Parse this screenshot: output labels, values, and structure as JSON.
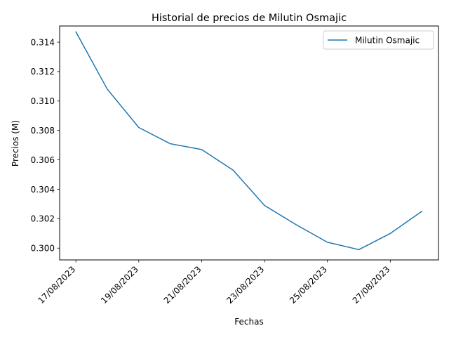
{
  "chart_data": {
    "type": "line",
    "title": "Historial de precios de Milutin Osmajic",
    "xlabel": "Fechas",
    "ylabel": "Precios (M)",
    "x": [
      "17/08/2023",
      "18/08/2023",
      "19/08/2023",
      "20/08/2023",
      "21/08/2023",
      "22/08/2023",
      "23/08/2023",
      "24/08/2023",
      "25/08/2023",
      "26/08/2023",
      "27/08/2023",
      "28/08/2023"
    ],
    "x_tick_labels": [
      "17/08/2023",
      "19/08/2023",
      "21/08/2023",
      "23/08/2023",
      "25/08/2023",
      "27/08/2023"
    ],
    "ylim": [
      0.2992,
      0.3151
    ],
    "y_ticks": [
      "0.300",
      "0.302",
      "0.304",
      "0.306",
      "0.308",
      "0.310",
      "0.312",
      "0.314"
    ],
    "series": [
      {
        "name": "Milutin Osmajic",
        "color": "#1f77b4",
        "values": [
          0.3147,
          0.3108,
          0.3082,
          0.3071,
          0.3067,
          0.3053,
          0.3029,
          0.3016,
          0.3004,
          0.2999,
          0.301,
          0.3025
        ]
      }
    ],
    "legend": {
      "position": "top-right"
    },
    "grid": false
  }
}
